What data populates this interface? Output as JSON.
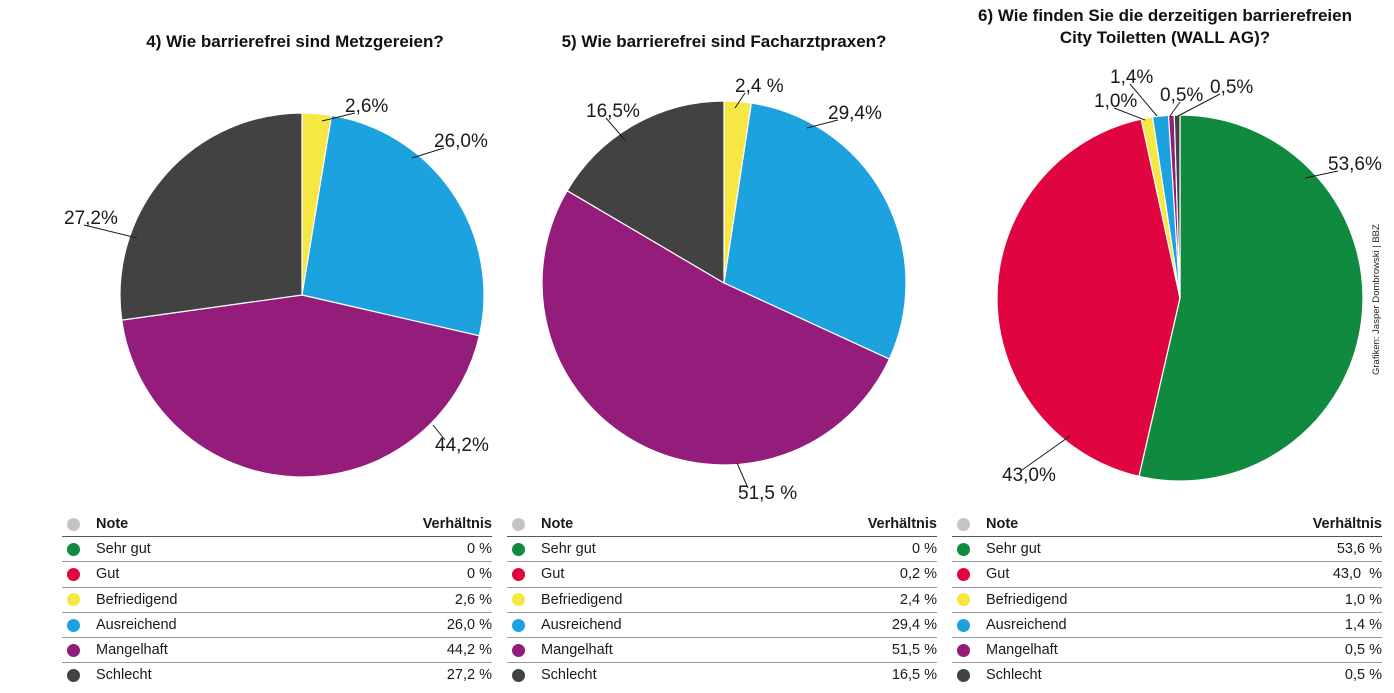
{
  "colors": {
    "Sehr gut": "#0f8a3e",
    "Gut": "#e00540",
    "Befriedigend": "#f7e743",
    "Ausreichend": "#1ca2de",
    "Mangelhaft": "#941c7b",
    "Schlecht": "#424242",
    "header_dot": "#c4c4c4"
  },
  "chart_data": [
    {
      "type": "pie",
      "title": "4) Wie barrierefrei sind Metzgereien?",
      "slices": [
        {
          "name": "Befriedigend",
          "value": 2.6,
          "label": "2,6%"
        },
        {
          "name": "Ausreichend",
          "value": 26.0,
          "label": "26,0%"
        },
        {
          "name": "Mangelhaft",
          "value": 44.2,
          "label": "44,2%"
        },
        {
          "name": "Schlecht",
          "value": 27.2,
          "label": "27,2%"
        }
      ],
      "table": {
        "header": [
          "Note",
          "Verhältnis"
        ],
        "rows": [
          {
            "note": "Sehr gut",
            "value": "0 %"
          },
          {
            "note": "Gut",
            "value": "0 %"
          },
          {
            "note": "Befriedigend",
            "value": "2,6 %"
          },
          {
            "note": "Ausreichend",
            "value": "26,0 %"
          },
          {
            "note": "Mangelhaft",
            "value": "44,2 %"
          },
          {
            "note": "Schlecht",
            "value": "27,2 %"
          }
        ]
      }
    },
    {
      "type": "pie",
      "title": "5) Wie barrierefrei sind Facharztpraxen?",
      "slices": [
        {
          "name": "Befriedigend",
          "value": 2.4,
          "label": "2,4 %"
        },
        {
          "name": "Ausreichend",
          "value": 29.4,
          "label": "29,4%"
        },
        {
          "name": "Mangelhaft",
          "value": 51.5,
          "label": "51,5 %"
        },
        {
          "name": "Schlecht",
          "value": 16.5,
          "label": "16,5%"
        }
      ],
      "table": {
        "header": [
          "Note",
          "Verhältnis"
        ],
        "rows": [
          {
            "note": "Sehr gut",
            "value": "0 %"
          },
          {
            "note": "Gut",
            "value": "0,2 %"
          },
          {
            "note": "Befriedigend",
            "value": "2,4 %"
          },
          {
            "note": "Ausreichend",
            "value": "29,4 %"
          },
          {
            "note": "Mangelhaft",
            "value": "51,5 %"
          },
          {
            "note": "Schlecht",
            "value": "16,5 %"
          }
        ]
      }
    },
    {
      "type": "pie",
      "title": "6) Wie finden Sie die derzeitigen barrierefreien City Toiletten (WALL AG)?",
      "slices": [
        {
          "name": "Sehr gut",
          "value": 53.6,
          "label": "53,6%"
        },
        {
          "name": "Gut",
          "value": 43.0,
          "label": "43,0%"
        },
        {
          "name": "Befriedigend",
          "value": 1.0,
          "label": "1,0%"
        },
        {
          "name": "Ausreichend",
          "value": 1.4,
          "label": "1,4%"
        },
        {
          "name": "Mangelhaft",
          "value": 0.5,
          "label": "0,5%"
        },
        {
          "name": "Schlecht",
          "value": 0.5,
          "label": "0,5%"
        }
      ],
      "table": {
        "header": [
          "Note",
          "Verhältnis"
        ],
        "rows": [
          {
            "note": "Sehr gut",
            "value": "53,6 %"
          },
          {
            "note": "Gut",
            "value": "43,0  %"
          },
          {
            "note": "Befriedigend",
            "value": "1,0 %"
          },
          {
            "note": "Ausreichend",
            "value": "1,4 %"
          },
          {
            "note": "Mangelhaft",
            "value": "0,5 %"
          },
          {
            "note": "Schlecht",
            "value": "0,5 %"
          }
        ]
      }
    }
  ],
  "credit": "Grafiken: Jasper Dombrowski | BBZ"
}
